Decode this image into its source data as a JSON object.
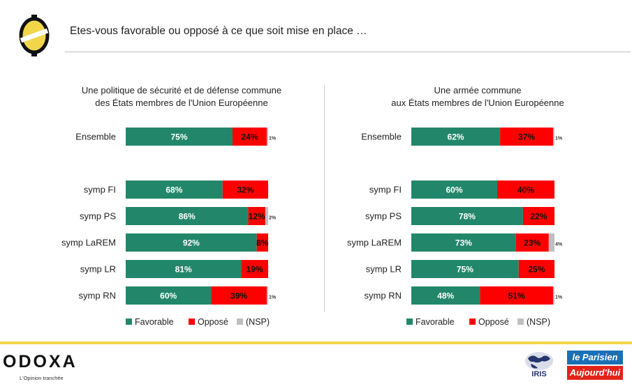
{
  "header": {
    "question": "Etes-vous favorable ou opposé à ce que soit mise en place …"
  },
  "branding": {
    "odoxa_name": "ODOXA",
    "odoxa_tagline": "L'Opinion tranchée",
    "iris_name": "IRIS",
    "parisien_line1": "le Parisien",
    "parisien_line2": "Aujourd'hui"
  },
  "colors": {
    "favorable": "#22876a",
    "oppose": "#ff0000",
    "nsp": "#bfbfbf",
    "brand_yellow": "#f1d649",
    "parisien_blue": "#1a6fb5",
    "parisien_red": "#e2231a"
  },
  "chart_data": [
    {
      "type": "bar",
      "orientation": "horizontal",
      "stacked": "100%",
      "title": [
        "Une politique de sécurité et de défense commune",
        "des États membres de l'Union Européenne"
      ],
      "categories": [
        "Ensemble",
        "symp FI",
        "symp PS",
        "symp LaREM",
        "symp LR",
        "symp RN"
      ],
      "series": [
        {
          "name": "Favorable",
          "values": [
            75,
            68,
            86,
            92,
            81,
            60
          ],
          "labels": [
            "75%",
            "68%",
            "86%",
            "92%",
            "81%",
            "60%"
          ]
        },
        {
          "name": "Opposé",
          "values": [
            24,
            32,
            12,
            8,
            19,
            39
          ],
          "labels": [
            "24%",
            "32%",
            "12%",
            "8%",
            "19%",
            "39%"
          ]
        },
        {
          "name": "(NSP)",
          "values": [
            1,
            0,
            2,
            0,
            0,
            1
          ],
          "labels": [
            "1%",
            "",
            "2%",
            "",
            "",
            "1%"
          ]
        }
      ],
      "legend": "bottom"
    },
    {
      "type": "bar",
      "orientation": "horizontal",
      "stacked": "100%",
      "title": [
        "Une armée commune",
        "aux États membres de l'Union Européenne"
      ],
      "categories": [
        "Ensemble",
        "symp FI",
        "symp PS",
        "symp LaREM",
        "symp LR",
        "symp RN"
      ],
      "series": [
        {
          "name": "Favorable",
          "values": [
            62,
            60,
            78,
            73,
            75,
            48
          ],
          "labels": [
            "62%",
            "60%",
            "78%",
            "73%",
            "75%",
            "48%"
          ]
        },
        {
          "name": "Opposé",
          "values": [
            37,
            40,
            22,
            23,
            25,
            51
          ],
          "labels": [
            "37%",
            "40%",
            "22%",
            "23%",
            "25%",
            "51%"
          ]
        },
        {
          "name": "(NSP)",
          "values": [
            1,
            0,
            0,
            4,
            0,
            1
          ],
          "labels": [
            "1%",
            "",
            "",
            "4%",
            "",
            "1%"
          ]
        }
      ],
      "legend": "bottom"
    }
  ]
}
